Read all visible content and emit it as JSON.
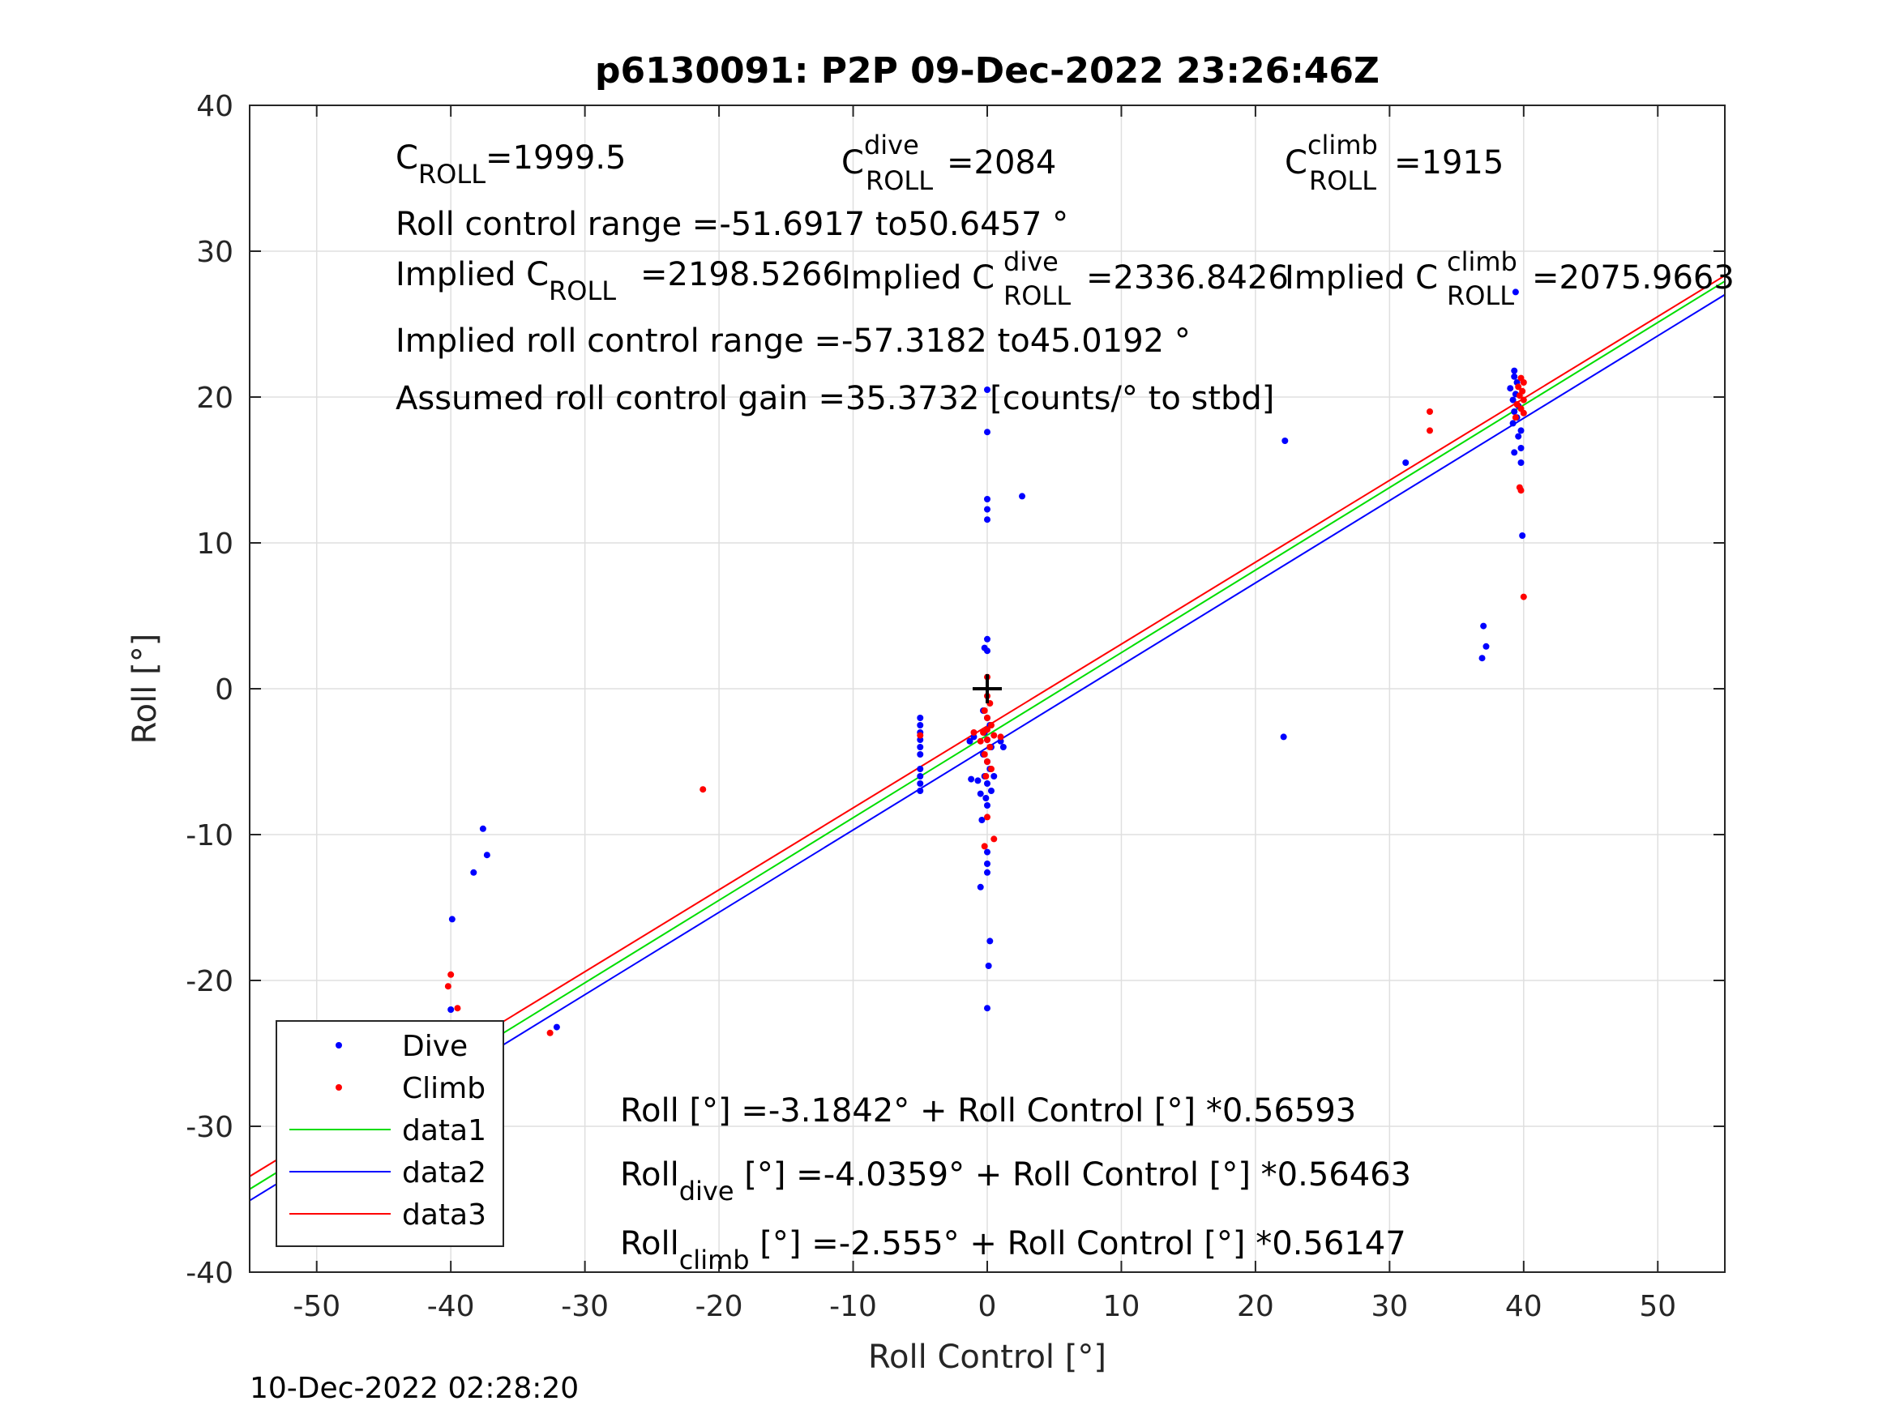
{
  "chart_data": {
    "type": "scatter",
    "title": "p6130091: P2P 09-Dec-2022 23:26:46Z",
    "xlabel": "Roll Control [°]",
    "ylabel": "Roll [°]",
    "xlim": [
      -55,
      55
    ],
    "ylim": [
      -40,
      40
    ],
    "xticks": [
      -50,
      -40,
      -30,
      -20,
      -10,
      0,
      10,
      20,
      30,
      40,
      50
    ],
    "yticks": [
      -40,
      -30,
      -20,
      -10,
      0,
      10,
      20,
      30,
      40
    ],
    "xtick_labels": [
      "-50",
      "-40",
      "-30",
      "-20",
      "-10",
      "0",
      "10",
      "20",
      "30",
      "40",
      "50"
    ],
    "ytick_labels": [
      "-40",
      "-30",
      "-20",
      "-10",
      "0",
      "10",
      "20",
      "30",
      "40"
    ],
    "grid": true,
    "legend_position": "bottom-left",
    "legend": [
      "Dive",
      "Climb",
      "data1",
      "data2",
      "data3"
    ],
    "colors": {
      "dive": "#0000ff",
      "climb": "#ff0000",
      "data1": "#00dd00",
      "data2": "#0000ff",
      "data3": "#ff0000",
      "marker": "#000000"
    },
    "series": [
      {
        "name": "Dive",
        "kind": "points",
        "color": "#0000ff",
        "points": [
          [
            -40.0,
            -22.0
          ],
          [
            -40.0,
            -23.0
          ],
          [
            -40.0,
            -24.0
          ],
          [
            -40.0,
            -25.0
          ],
          [
            -40.0,
            -26.0
          ],
          [
            -40.0,
            -27.0
          ],
          [
            -40.0,
            -28.0
          ],
          [
            -40.0,
            -29.0
          ],
          [
            -39.8,
            -27.5
          ],
          [
            -39.6,
            -26.5
          ],
          [
            -39.4,
            -28.2
          ],
          [
            -39.2,
            -26.0
          ],
          [
            -39.0,
            -27.0
          ],
          [
            -39.0,
            -25.8
          ],
          [
            -40.2,
            -28.8
          ],
          [
            -40.0,
            -29.7
          ],
          [
            -39.9,
            -15.8
          ],
          [
            -38.3,
            -12.6
          ],
          [
            -37.6,
            -9.6
          ],
          [
            -37.3,
            -11.4
          ],
          [
            -32.1,
            -23.2
          ],
          [
            -5.0,
            -2.0
          ],
          [
            -5.0,
            -2.5
          ],
          [
            -5.0,
            -3.0
          ],
          [
            -5.0,
            -3.5
          ],
          [
            -5.0,
            -4.0
          ],
          [
            -5.0,
            -4.5
          ],
          [
            -5.0,
            -5.5
          ],
          [
            -5.0,
            -6.0
          ],
          [
            -5.0,
            -6.5
          ],
          [
            -5.0,
            -7.0
          ],
          [
            0.0,
            3.4
          ],
          [
            -0.2,
            2.8
          ],
          [
            0.0,
            2.6
          ],
          [
            0.0,
            20.5
          ],
          [
            0.0,
            17.6
          ],
          [
            0.0,
            13.0
          ],
          [
            0.0,
            12.3
          ],
          [
            0.0,
            11.6
          ],
          [
            2.6,
            13.2
          ],
          [
            -0.3,
            -1.5
          ],
          [
            0.0,
            -2.0
          ],
          [
            0.2,
            -2.5
          ],
          [
            -0.2,
            -3.0
          ],
          [
            0.0,
            -3.5
          ],
          [
            0.3,
            -4.0
          ],
          [
            -0.3,
            -4.5
          ],
          [
            0.0,
            -5.0
          ],
          [
            0.2,
            -5.5
          ],
          [
            -0.2,
            -6.0
          ],
          [
            0.0,
            -6.5
          ],
          [
            0.3,
            -7.0
          ],
          [
            -0.1,
            -7.5
          ],
          [
            0.0,
            -8.0
          ],
          [
            -0.4,
            -9.0
          ],
          [
            0.0,
            -11.2
          ],
          [
            0.0,
            -12.0
          ],
          [
            0.0,
            -12.6
          ],
          [
            -0.5,
            -13.6
          ],
          [
            0.2,
            -17.3
          ],
          [
            0.1,
            -19.0
          ],
          [
            0.0,
            -21.9
          ],
          [
            -1.3,
            -3.6
          ],
          [
            -1.0,
            -3.3
          ],
          [
            1.0,
            -3.6
          ],
          [
            1.2,
            -4.0
          ],
          [
            -1.2,
            -6.2
          ],
          [
            -0.7,
            -6.3
          ],
          [
            0.5,
            -6.0
          ],
          [
            -0.5,
            -7.2
          ],
          [
            22.2,
            17.0
          ],
          [
            22.1,
            -3.3
          ],
          [
            31.2,
            15.5
          ],
          [
            39.3,
            21.8
          ],
          [
            39.3,
            21.4
          ],
          [
            39.5,
            21.0
          ],
          [
            39.0,
            20.6
          ],
          [
            39.4,
            20.2
          ],
          [
            39.2,
            19.8
          ],
          [
            39.6,
            19.4
          ],
          [
            39.3,
            19.0
          ],
          [
            39.5,
            18.6
          ],
          [
            39.2,
            18.2
          ],
          [
            39.8,
            17.7
          ],
          [
            39.6,
            17.3
          ],
          [
            39.8,
            16.5
          ],
          [
            39.3,
            16.2
          ],
          [
            39.8,
            15.5
          ],
          [
            39.9,
            10.5
          ],
          [
            39.4,
            27.2
          ],
          [
            37.0,
            4.3
          ],
          [
            37.2,
            2.9
          ],
          [
            36.9,
            2.1
          ]
        ]
      },
      {
        "name": "Climb",
        "kind": "points",
        "color": "#ff0000",
        "points": [
          [
            -40.0,
            -19.6
          ],
          [
            -40.2,
            -20.4
          ],
          [
            -39.5,
            -21.9
          ],
          [
            -40.0,
            -23.6
          ],
          [
            -39.6,
            -24.0
          ],
          [
            -39.4,
            -24.4
          ],
          [
            -39.8,
            -24.8
          ],
          [
            -39.2,
            -25.2
          ],
          [
            -40.0,
            -25.6
          ],
          [
            -39.5,
            -26.0
          ],
          [
            -39.9,
            -26.4
          ],
          [
            -39.3,
            -24.2
          ],
          [
            -39.7,
            -25.0
          ],
          [
            -32.6,
            -23.6
          ],
          [
            -21.2,
            -6.9
          ],
          [
            -5.0,
            -3.2
          ],
          [
            0.0,
            0.8
          ],
          [
            0.0,
            -0.5
          ],
          [
            0.2,
            -1.0
          ],
          [
            -0.2,
            -1.5
          ],
          [
            0.0,
            -2.0
          ],
          [
            0.3,
            -2.5
          ],
          [
            -0.3,
            -3.0
          ],
          [
            0.0,
            -3.5
          ],
          [
            0.2,
            -4.0
          ],
          [
            -0.2,
            -4.5
          ],
          [
            0.0,
            -5.0
          ],
          [
            0.3,
            -5.5
          ],
          [
            -0.1,
            -6.0
          ],
          [
            0.0,
            -2.8
          ],
          [
            0.5,
            -3.2
          ],
          [
            -0.5,
            -3.6
          ],
          [
            1.0,
            -3.3
          ],
          [
            -1.0,
            -3.0
          ],
          [
            0.0,
            -8.8
          ],
          [
            -0.2,
            -10.8
          ],
          [
            0.5,
            -10.3
          ],
          [
            33.0,
            19.0
          ],
          [
            33.0,
            17.7
          ],
          [
            39.8,
            21.3
          ],
          [
            40.0,
            21.0
          ],
          [
            39.6,
            20.7
          ],
          [
            39.9,
            20.4
          ],
          [
            39.7,
            20.1
          ],
          [
            40.0,
            19.8
          ],
          [
            39.5,
            19.5
          ],
          [
            39.8,
            19.2
          ],
          [
            40.0,
            18.9
          ],
          [
            39.4,
            18.6
          ],
          [
            39.7,
            13.8
          ],
          [
            39.8,
            13.6
          ],
          [
            40.0,
            6.3
          ]
        ]
      },
      {
        "name": "data1",
        "kind": "line",
        "color": "#00dd00",
        "intercept": -3.1842,
        "slope": 0.56593
      },
      {
        "name": "data2",
        "kind": "line",
        "color": "#0000ff",
        "intercept": -4.0359,
        "slope": 0.56463
      },
      {
        "name": "data3",
        "kind": "line",
        "color": "#ff0000",
        "intercept": -2.555,
        "slope": 0.56147
      }
    ],
    "origin_marker": {
      "x": 0,
      "y": 0,
      "symbol": "+"
    },
    "annotations": {
      "c_roll": {
        "base": "C",
        "sub": "ROLL",
        "value": "=1999.5"
      },
      "c_roll_dive": {
        "base": "C",
        "sup": "dive",
        "sub": "ROLL",
        "value": "=2084"
      },
      "c_roll_climb": {
        "base": "C",
        "sup": "climb",
        "sub": "ROLL",
        "value": "=1915"
      },
      "roll_control_range": "Roll control range =-51.6917 to50.6457 °",
      "implied_c_roll": {
        "prefix": "Implied C",
        "sub": "ROLL",
        "value": "=2198.5266"
      },
      "implied_c_roll_dive": {
        "prefix": "Implied C",
        "sup": "dive",
        "sub": "ROLL",
        "value": "=2336.8426"
      },
      "implied_c_roll_climb": {
        "prefix": "Implied C",
        "sup": "climb",
        "sub": "ROLL",
        "value": "=2075.9663"
      },
      "implied_roll_control_range": "Implied roll control range =-57.3182 to45.0192 °",
      "assumed_gain": "Assumed roll control gain =35.3732 [counts/° to stbd]",
      "fit_all": "Roll [°] =-3.1842° + Roll Control [°] *0.56593",
      "fit_dive": {
        "base": "Roll",
        "sub": "dive",
        "rest": " [°] =-4.0359° + Roll Control [°] *0.56463"
      },
      "fit_climb": {
        "base": "Roll",
        "sub": "climb",
        "rest": " [°] =-2.555° + Roll Control [°] *0.56147"
      }
    }
  },
  "footer_timestamp": "10-Dec-2022 02:28:20"
}
